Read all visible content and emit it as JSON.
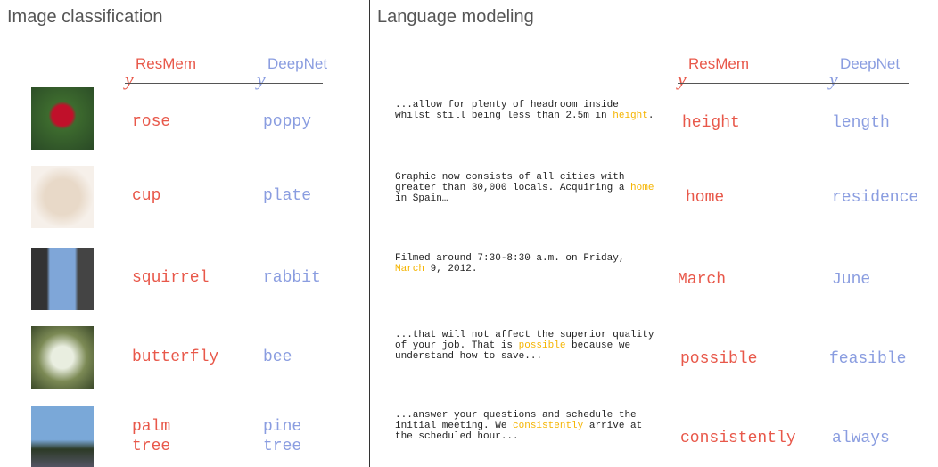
{
  "image_classification": {
    "title": "Image classification",
    "header": {
      "symbol": "y",
      "resmem": "ResMem",
      "deepnet": "DeepNet"
    },
    "rows": [
      {
        "resmem": "rose",
        "deepnet": "poppy"
      },
      {
        "resmem": "cup",
        "deepnet": "plate"
      },
      {
        "resmem": "squirrel",
        "deepnet": "rabbit"
      },
      {
        "resmem": "butterfly",
        "deepnet": "bee"
      },
      {
        "resmem": "palm tree",
        "deepnet": "pine tree"
      }
    ]
  },
  "language_modeling": {
    "title": "Language modeling",
    "header": {
      "symbol": "y",
      "resmem": "ResMem",
      "deepnet": "DeepNet"
    },
    "rows": [
      {
        "before": "...allow for plenty of headroom inside whilst still being less than 2.5m in ",
        "target": "height",
        "after": ".",
        "resmem": "height",
        "deepnet": "length"
      },
      {
        "before": "Graphic now consists of all cities with greater than 30,000 locals. Acquiring a ",
        "target": "home",
        "after": " in Spain…",
        "resmem": "home",
        "deepnet": "residence"
      },
      {
        "before": "Filmed around 7:30-8:30 a.m. on Friday, ",
        "target": "March",
        "after": " 9, 2012.",
        "resmem": "March",
        "deepnet": "June"
      },
      {
        "before": "...that will not affect the superior quality of your job. That is ",
        "target": "possible",
        "after": " because we understand how to save...",
        "resmem": "possible",
        "deepnet": "feasible"
      },
      {
        "before": "...answer your questions and schedule the initial meeting. We ",
        "target": "consistently",
        "after": " arrive at the scheduled hour...",
        "resmem": "consistently",
        "deepnet": "always"
      }
    ]
  }
}
